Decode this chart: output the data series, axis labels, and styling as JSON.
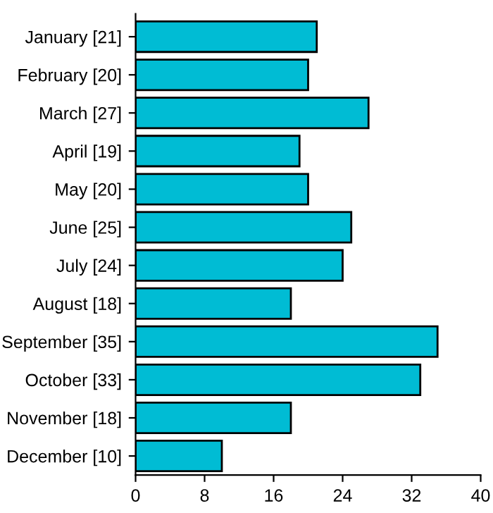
{
  "chart_data": {
    "type": "bar",
    "orientation": "horizontal",
    "categories": [
      "January [21]",
      "February [20]",
      "March [27]",
      "April [19]",
      "May [20]",
      "June [25]",
      "July [24]",
      "August [18]",
      "September [35]",
      "October [33]",
      "November [18]",
      "December [10]"
    ],
    "values": [
      21,
      20,
      27,
      19,
      20,
      25,
      24,
      18,
      35,
      33,
      18,
      10
    ],
    "color": "#00bcd4",
    "xlim": [
      0,
      40
    ],
    "xticks": [
      0,
      8,
      16,
      24,
      32,
      40
    ],
    "grid": false,
    "legend": false
  }
}
